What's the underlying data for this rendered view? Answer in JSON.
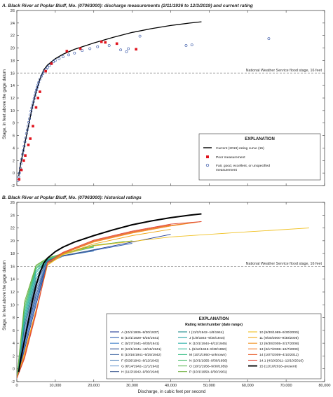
{
  "ylabel": "Stage, in feet above the gage datum",
  "xlabel": "Discharge, in cubic feet per second",
  "chart_data": [
    {
      "type": "scatter",
      "title": "A. Black River at Poplar Bluff, Mo. (07063000): discharge measurements (2/11/1936 to 12/3/2019) and current rating",
      "xlim": [
        0,
        80000
      ],
      "ylim": [
        -2,
        26
      ],
      "xticks": [
        "0",
        "10,000",
        "20,000",
        "30,000",
        "40,000",
        "50,000",
        "60,000",
        "70,000",
        "80,000"
      ],
      "yticks": [
        "-2",
        "0",
        "2",
        "4",
        "6",
        "8",
        "10",
        "12",
        "14",
        "16",
        "18",
        "20",
        "22",
        "24",
        "26"
      ],
      "show_xtick_labels": false,
      "grid": false,
      "flood_stage": {
        "y": 16,
        "label": "National Weather Service flood stage, 16 feet"
      },
      "legend": {
        "title": "EXPLANATION",
        "placement": "lower-right",
        "items": [
          {
            "label": "Current (2019) rating curve (15)",
            "symbol": "line",
            "color": "#000000"
          },
          {
            "label": "Poor measurement",
            "symbol": "square",
            "color": "#e0141e"
          },
          {
            "label": "Fair, good, excellent, or unspecified measurement",
            "symbol": "circle",
            "color": "#2f4fa3"
          }
        ]
      },
      "series": [
        {
          "name": "Current (2019) rating curve (15)",
          "type": "line",
          "color": "#000000",
          "x": [
            500,
            1000,
            2000,
            3000,
            4000,
            5000,
            6000,
            7000,
            8000,
            9000,
            10000,
            12000,
            15000,
            20000,
            25000,
            30000,
            35000,
            40000,
            45000,
            48000
          ],
          "y": [
            -0.5,
            1.5,
            4.5,
            7.5,
            10.5,
            13,
            15,
            16.5,
            17.3,
            17.8,
            18.3,
            19,
            19.8,
            20.8,
            21.7,
            22.5,
            23.1,
            23.6,
            24.0,
            24.2
          ]
        },
        {
          "name": "Poor measurement",
          "type": "scatter",
          "marker": "square",
          "color": "#e0141e",
          "x": [
            600,
            1200,
            1800,
            2200,
            3000,
            3500,
            4200,
            5000,
            5500,
            6000,
            7500,
            9000,
            13000,
            16500,
            22000,
            23000,
            26000,
            31000
          ],
          "y": [
            -1.0,
            0.5,
            2.0,
            2.8,
            4.5,
            5.5,
            7.5,
            10.5,
            12,
            13,
            16.3,
            17.5,
            19.5,
            19.9,
            21.0,
            20.9,
            20.7,
            19.8
          ]
        },
        {
          "name": "Fair, good, excellent, or unspecified measurement",
          "type": "scatter",
          "marker": "circle",
          "color": "#2f4fa3",
          "x": [
            300,
            500,
            700,
            900,
            1100,
            1300,
            1500,
            1700,
            1900,
            2100,
            2300,
            2500,
            2700,
            2900,
            3100,
            3300,
            3500,
            3700,
            3900,
            4100,
            4300,
            4500,
            4700,
            4900,
            5100,
            5300,
            5500,
            5700,
            6000,
            6400,
            6800,
            7200,
            7600,
            8000,
            8500,
            9000,
            9500,
            10000,
            11000,
            12000,
            13500,
            15000,
            17000,
            19000,
            21000,
            24000,
            27000,
            28500,
            29000,
            32000,
            44000,
            45500,
            65500
          ],
          "y": [
            -1.2,
            -0.6,
            0.0,
            0.8,
            1.5,
            2.2,
            3.0,
            3.6,
            4.3,
            5.0,
            5.6,
            6.3,
            6.9,
            7.5,
            8.1,
            8.7,
            9.3,
            9.9,
            10.4,
            10.9,
            11.4,
            11.9,
            12.4,
            12.9,
            13.3,
            13.7,
            14.1,
            14.5,
            15.0,
            15.5,
            15.9,
            16.3,
            16.6,
            16.9,
            17.2,
            17.5,
            17.8,
            18.0,
            18.3,
            18.6,
            18.9,
            19.2,
            19.6,
            19.9,
            20.2,
            20.4,
            19.7,
            19.4,
            19.9,
            21.9,
            20.4,
            20.5,
            21.5
          ]
        }
      ]
    },
    {
      "type": "line",
      "title": "B. Black River at Poplar Bluff, Mo. (07063000): historical ratings",
      "xlim": [
        0,
        80000
      ],
      "ylim": [
        -2,
        26
      ],
      "xticks": [
        "0",
        "10,000",
        "20,000",
        "30,000",
        "40,000",
        "50,000",
        "60,000",
        "70,000",
        "80,000"
      ],
      "yticks": [
        "-2",
        "0",
        "2",
        "4",
        "6",
        "8",
        "10",
        "12",
        "14",
        "16",
        "18",
        "20",
        "22",
        "24",
        "26"
      ],
      "grid": false,
      "flood_stage": {
        "y": 16,
        "label": "National Weather Service flood stage, 16 feet"
      },
      "legend": {
        "title": "EXPLANATION",
        "subtitle": "Rating letter/number (date range)",
        "placement": "lower-right",
        "columns": 3
      },
      "series": [
        {
          "name": "A (10/1/1936–9/30/1937)",
          "color": "#1f3a93",
          "x": [
            0,
            2000,
            5000,
            8000,
            12000,
            20000,
            30000,
            40000
          ],
          "y": [
            -1.5,
            3,
            10,
            16.5,
            17.6,
            18.6,
            19.8,
            21.0
          ]
        },
        {
          "name": "B (10/1/1929–5/26/1941)",
          "color": "#2f5fb0",
          "x": [
            0,
            2000,
            5000,
            8000,
            12000,
            20000,
            30000
          ],
          "y": [
            -1.5,
            3.5,
            10.5,
            16.6,
            17.6,
            18.5,
            19.6
          ]
        },
        {
          "name": "C (5/27/1941–9/30/1941)",
          "color": "#3f7fc8",
          "x": [
            0,
            2000,
            5000,
            8000,
            12000,
            20000
          ],
          "y": [
            -1.5,
            4,
            11,
            16.7,
            17.6,
            18.4
          ]
        },
        {
          "name": "D (10/1/1941–10/15/1941)",
          "color": "#2a4a8a",
          "x": [
            0,
            2000,
            5000,
            8000,
            12000,
            20000
          ],
          "y": [
            -1.5,
            4.5,
            11.5,
            16.7,
            17.6,
            18.5
          ]
        },
        {
          "name": "E (10/16/1941–5/25/1942)",
          "color": "#4a6fa8",
          "x": [
            0,
            2000,
            5000,
            8000,
            12000,
            20000
          ],
          "y": [
            -1.5,
            5,
            12,
            16.8,
            17.6,
            18.5
          ]
        },
        {
          "name": "F (6/26/1942–8/12/1942)",
          "color": "#5a8ac0",
          "x": [
            0,
            2000,
            5000,
            8000,
            12000
          ],
          "y": [
            -1.5,
            5.5,
            12.5,
            16.8,
            17.6
          ]
        },
        {
          "name": "G (8/14/1942–11/1/1942)",
          "color": "#6b9ad0",
          "x": [
            0,
            2000,
            5000,
            8000,
            12000
          ],
          "y": [
            -1.5,
            6,
            13,
            16.9,
            17.7
          ]
        },
        {
          "name": "H (11/2/1942–9/30/1944)",
          "color": "#3a5890",
          "x": [
            0,
            2000,
            5000,
            8000,
            12000,
            20000
          ],
          "y": [
            -1.5,
            6.5,
            13.5,
            16.9,
            17.7,
            18.6
          ]
        },
        {
          "name": "I (11/2/1942–1/8/1944)",
          "color": "#1a8a8a",
          "x": [
            0,
            2000,
            5000,
            8000,
            12000
          ],
          "y": [
            -1.5,
            7,
            14,
            17,
            17.7
          ]
        },
        {
          "name": "J (1/9/1944–9/30/1944)",
          "color": "#22a0a0",
          "x": [
            0,
            2000,
            5000,
            8000,
            12000
          ],
          "y": [
            -1.5,
            7.5,
            14.5,
            17,
            17.8
          ]
        },
        {
          "name": "K (10/1/1944–6/11/1945)",
          "color": "#2ab0a8",
          "x": [
            0,
            2000,
            5000,
            8000,
            12000
          ],
          "y": [
            -1.5,
            8,
            15,
            17.1,
            17.8
          ]
        },
        {
          "name": "L (6/12/1945–9/30/1950)",
          "color": "#35b898",
          "x": [
            0,
            2000,
            5000,
            8000,
            12000
          ],
          "y": [
            -1.5,
            8.5,
            15.3,
            17.1,
            17.8
          ]
        },
        {
          "name": "M (10/1/1950–unknown)",
          "color": "#3dc088",
          "x": [
            0,
            2000,
            5000,
            8000,
            12000,
            20000
          ],
          "y": [
            -1.5,
            9,
            15.6,
            17.2,
            17.9,
            19.0
          ]
        },
        {
          "name": "N (10/1/1955–9/30/1956)",
          "color": "#50c070",
          "x": [
            0,
            2000,
            5000,
            8000,
            12000,
            20000
          ],
          "y": [
            -1.5,
            9.5,
            15.8,
            17.2,
            17.9,
            19.1
          ]
        },
        {
          "name": "O (10/1/1956–9/30/1959)",
          "color": "#60b858",
          "x": [
            0,
            2000,
            5000,
            8000,
            12000,
            20000,
            28000
          ],
          "y": [
            -1.5,
            10,
            16,
            17.3,
            18.0,
            19.2,
            19.9
          ]
        },
        {
          "name": "P (10/1/1959–9/30/1961)",
          "color": "#70b040",
          "x": [
            0,
            2000,
            5000,
            8000,
            12000,
            20000,
            30000
          ],
          "y": [
            -1.5,
            10.5,
            16.2,
            17.3,
            18.0,
            19.3,
            20.0
          ]
        },
        {
          "name": "10 (9/30/1989–9/30/2000)",
          "color": "#f0c020",
          "x": [
            0,
            2000,
            5000,
            8000,
            12000,
            20000,
            40000,
            60000,
            76000
          ],
          "y": [
            -1.5,
            2.5,
            9,
            16.2,
            17.8,
            19.2,
            20.6,
            21.4,
            22.0
          ]
        },
        {
          "name": "11 (9/30/2000–9/30/2005)",
          "color": "#f0a818",
          "x": [
            0,
            2000,
            5000,
            8000,
            12000,
            20000,
            30000,
            40000
          ],
          "y": [
            -1.5,
            2.5,
            9.2,
            16.3,
            17.9,
            19.5,
            20.8,
            21.8
          ]
        },
        {
          "name": "12 (9/30/2005–3/17/2008)",
          "color": "#f09020",
          "x": [
            0,
            2000,
            5000,
            8000,
            12000,
            20000,
            30000,
            40000,
            48000
          ],
          "y": [
            -1.5,
            2,
            9,
            16.5,
            18.0,
            19.8,
            21.2,
            22.3,
            23.0
          ]
        },
        {
          "name": "13 (3/17/2008–10/7/2009)",
          "color": "#ee7a28",
          "x": [
            0,
            2000,
            5000,
            8000,
            12000,
            20000,
            30000,
            40000,
            48000
          ],
          "y": [
            -1.5,
            2,
            9,
            16.5,
            18.0,
            19.9,
            21.3,
            22.4,
            23.0
          ]
        },
        {
          "name": "14 (10/7/2009–4/10/2011)",
          "color": "#e86030",
          "x": [
            0,
            2000,
            5000,
            8000,
            12000,
            20000,
            30000,
            40000
          ],
          "y": [
            -1.5,
            1.8,
            8.8,
            16.6,
            18.1,
            20.0,
            21.4,
            22.5
          ]
        },
        {
          "name": "14.1 (4/10/2011–12/10/2016)",
          "color": "#e04838",
          "x": [
            0,
            2000,
            5000,
            8000,
            12000,
            20000,
            30000,
            40000,
            48000
          ],
          "y": [
            -1.5,
            1.6,
            8.6,
            16.6,
            18.2,
            20.1,
            21.5,
            22.6,
            23.0
          ]
        },
        {
          "name": "15 (12/10/2016–present)",
          "color": "#000000",
          "width": 2.0,
          "x": [
            500,
            1000,
            2000,
            3000,
            4000,
            5000,
            6000,
            7000,
            8000,
            9000,
            10000,
            12000,
            15000,
            20000,
            25000,
            30000,
            35000,
            40000,
            45000,
            48000
          ],
          "y": [
            -0.5,
            1.5,
            4.5,
            7.5,
            10.5,
            13,
            15,
            16.5,
            17.3,
            17.8,
            18.3,
            19,
            19.8,
            20.8,
            21.7,
            22.5,
            23.1,
            23.6,
            24.0,
            24.2
          ]
        }
      ]
    }
  ]
}
